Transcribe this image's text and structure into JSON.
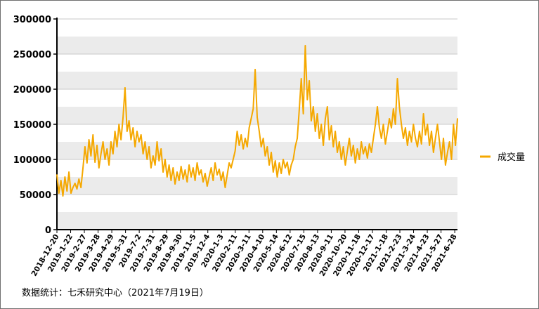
{
  "chart_data": {
    "type": "line",
    "title": "",
    "xlabel": "",
    "ylabel": "",
    "ylim": [
      0,
      300000
    ],
    "y_ticks": [
      0,
      50000,
      100000,
      150000,
      200000,
      250000,
      300000
    ],
    "y_tick_labels": [
      "0",
      "50000",
      "100000",
      "150000",
      "200000",
      "250000",
      "300000"
    ],
    "x_tick_labels": [
      "2018-12-20",
      "2019-1-22",
      "2019-2-27",
      "2019-3-28",
      "2019-4-29",
      "2019-5-31",
      "2019-7-2",
      "2019-7-31",
      "2019-8-29",
      "2019-9-30",
      "2019-11-5",
      "2019-12-4",
      "2020-1-3",
      "2020-2-11",
      "2020-3-11",
      "2020-4-10",
      "2020-5-14",
      "2020-6-12",
      "2020-7-15",
      "2020-8-13",
      "2020-9-11",
      "2020-10-20",
      "2020-11-18",
      "2020-12-17",
      "2021-1-18",
      "2021-2-23",
      "2021-3-24",
      "2021-4-23",
      "2021-5-27",
      "2021-6-28"
    ],
    "grid": "horizontal bands",
    "legend_position": "right",
    "series": [
      {
        "name": "成交量",
        "color": "#F5A800",
        "values": [
          [
            0,
            78000
          ],
          [
            2,
            52000
          ],
          [
            4,
            70000
          ],
          [
            6,
            48000
          ],
          [
            8,
            75000
          ],
          [
            10,
            55000
          ],
          [
            12,
            82000
          ],
          [
            14,
            52000
          ],
          [
            16,
            60000
          ],
          [
            18,
            66000
          ],
          [
            20,
            58000
          ],
          [
            22,
            72000
          ],
          [
            24,
            60000
          ],
          [
            26,
            88000
          ],
          [
            28,
            118000
          ],
          [
            30,
            95000
          ],
          [
            32,
            128000
          ],
          [
            34,
            105000
          ],
          [
            36,
            135000
          ],
          [
            38,
            96000
          ],
          [
            40,
            120000
          ],
          [
            42,
            88000
          ],
          [
            44,
            108000
          ],
          [
            46,
            125000
          ],
          [
            48,
            100000
          ],
          [
            50,
            115000
          ],
          [
            52,
            92000
          ],
          [
            54,
            125000
          ],
          [
            56,
            108000
          ],
          [
            58,
            140000
          ],
          [
            60,
            118000
          ],
          [
            62,
            150000
          ],
          [
            64,
            128000
          ],
          [
            66,
            160000
          ],
          [
            68,
            202000
          ],
          [
            70,
            140000
          ],
          [
            72,
            155000
          ],
          [
            74,
            128000
          ],
          [
            76,
            145000
          ],
          [
            78,
            118000
          ],
          [
            80,
            140000
          ],
          [
            82,
            125000
          ],
          [
            84,
            135000
          ],
          [
            86,
            108000
          ],
          [
            88,
            125000
          ],
          [
            90,
            100000
          ],
          [
            92,
            118000
          ],
          [
            94,
            88000
          ],
          [
            96,
            105000
          ],
          [
            98,
            92000
          ],
          [
            100,
            125000
          ],
          [
            102,
            98000
          ],
          [
            104,
            115000
          ],
          [
            106,
            82000
          ],
          [
            108,
            100000
          ],
          [
            110,
            75000
          ],
          [
            112,
            92000
          ],
          [
            114,
            70000
          ],
          [
            116,
            88000
          ],
          [
            118,
            65000
          ],
          [
            120,
            82000
          ],
          [
            122,
            70000
          ],
          [
            124,
            90000
          ],
          [
            126,
            72000
          ],
          [
            128,
            85000
          ],
          [
            130,
            68000
          ],
          [
            132,
            92000
          ],
          [
            134,
            75000
          ],
          [
            136,
            88000
          ],
          [
            138,
            70000
          ],
          [
            140,
            95000
          ],
          [
            142,
            78000
          ],
          [
            144,
            85000
          ],
          [
            146,
            68000
          ],
          [
            148,
            80000
          ],
          [
            150,
            62000
          ],
          [
            152,
            75000
          ],
          [
            154,
            88000
          ],
          [
            156,
            70000
          ],
          [
            158,
            95000
          ],
          [
            160,
            78000
          ],
          [
            162,
            86000
          ],
          [
            164,
            70000
          ],
          [
            166,
            82000
          ],
          [
            168,
            60000
          ],
          [
            170,
            78000
          ],
          [
            172,
            95000
          ],
          [
            174,
            88000
          ],
          [
            176,
            100000
          ],
          [
            178,
            112000
          ],
          [
            180,
            140000
          ],
          [
            182,
            120000
          ],
          [
            184,
            135000
          ],
          [
            186,
            115000
          ],
          [
            188,
            130000
          ],
          [
            190,
            118000
          ],
          [
            192,
            145000
          ],
          [
            194,
            158000
          ],
          [
            196,
            172000
          ],
          [
            198,
            228000
          ],
          [
            200,
            160000
          ],
          [
            202,
            140000
          ],
          [
            204,
            118000
          ],
          [
            206,
            130000
          ],
          [
            208,
            105000
          ],
          [
            210,
            118000
          ],
          [
            212,
            92000
          ],
          [
            214,
            110000
          ],
          [
            216,
            82000
          ],
          [
            218,
            98000
          ],
          [
            220,
            75000
          ],
          [
            222,
            95000
          ],
          [
            224,
            80000
          ],
          [
            226,
            100000
          ],
          [
            228,
            88000
          ],
          [
            230,
            96000
          ],
          [
            232,
            78000
          ],
          [
            234,
            92000
          ],
          [
            236,
            100000
          ],
          [
            238,
            118000
          ],
          [
            240,
            130000
          ],
          [
            242,
            170000
          ],
          [
            244,
            215000
          ],
          [
            246,
            165000
          ],
          [
            248,
            262000
          ],
          [
            250,
            185000
          ],
          [
            252,
            212000
          ],
          [
            254,
            155000
          ],
          [
            256,
            175000
          ],
          [
            258,
            140000
          ],
          [
            260,
            165000
          ],
          [
            262,
            130000
          ],
          [
            264,
            150000
          ],
          [
            266,
            120000
          ],
          [
            268,
            158000
          ],
          [
            270,
            175000
          ],
          [
            272,
            128000
          ],
          [
            274,
            148000
          ],
          [
            276,
            118000
          ],
          [
            278,
            140000
          ],
          [
            280,
            110000
          ],
          [
            282,
            125000
          ],
          [
            284,
            100000
          ],
          [
            286,
            118000
          ],
          [
            288,
            92000
          ],
          [
            290,
            112000
          ],
          [
            292,
            130000
          ],
          [
            294,
            105000
          ],
          [
            296,
            120000
          ],
          [
            298,
            95000
          ],
          [
            300,
            115000
          ],
          [
            302,
            100000
          ],
          [
            304,
            125000
          ],
          [
            306,
            108000
          ],
          [
            308,
            118000
          ],
          [
            310,
            102000
          ],
          [
            312,
            122000
          ],
          [
            314,
            110000
          ],
          [
            316,
            130000
          ],
          [
            318,
            150000
          ],
          [
            320,
            175000
          ],
          [
            322,
            145000
          ],
          [
            324,
            130000
          ],
          [
            326,
            150000
          ],
          [
            328,
            122000
          ],
          [
            330,
            140000
          ],
          [
            332,
            158000
          ],
          [
            334,
            145000
          ],
          [
            336,
            172000
          ],
          [
            338,
            150000
          ],
          [
            340,
            215000
          ],
          [
            342,
            175000
          ],
          [
            344,
            150000
          ],
          [
            346,
            130000
          ],
          [
            348,
            145000
          ],
          [
            350,
            120000
          ],
          [
            352,
            140000
          ],
          [
            354,
            125000
          ],
          [
            356,
            150000
          ],
          [
            358,
            130000
          ],
          [
            360,
            118000
          ],
          [
            362,
            140000
          ],
          [
            364,
            122000
          ],
          [
            366,
            165000
          ],
          [
            368,
            135000
          ],
          [
            370,
            150000
          ],
          [
            372,
            120000
          ],
          [
            374,
            140000
          ],
          [
            376,
            110000
          ],
          [
            378,
            130000
          ],
          [
            380,
            150000
          ],
          [
            382,
            125000
          ],
          [
            384,
            100000
          ],
          [
            386,
            130000
          ],
          [
            388,
            92000
          ],
          [
            390,
            110000
          ],
          [
            392,
            125000
          ],
          [
            394,
            100000
          ],
          [
            396,
            150000
          ],
          [
            398,
            120000
          ],
          [
            400,
            158000
          ]
        ]
      }
    ],
    "x_index_max": 400
  },
  "legend": {
    "label": "成交量"
  },
  "footer": {
    "source": "数据统计：七禾研究中心（2021年7月19日）"
  }
}
